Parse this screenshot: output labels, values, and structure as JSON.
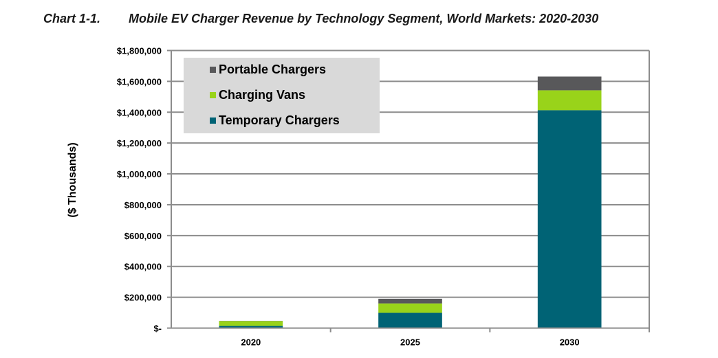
{
  "header": {
    "chart_label": "Chart 1-1.",
    "chart_title": "Mobile EV Charger Revenue by Technology Segment, World Markets: 2020-2030"
  },
  "chart_data": {
    "type": "bar",
    "stacked": true,
    "title": "Mobile EV Charger Revenue by Technology Segment, World Markets: 2020-2030",
    "xlabel": "",
    "ylabel": "($ Thousands)",
    "categories": [
      "2020",
      "2025",
      "2030"
    ],
    "ylim": [
      0,
      1800000
    ],
    "yticks": [
      0,
      200000,
      400000,
      600000,
      800000,
      1000000,
      1200000,
      1400000,
      1600000,
      1800000
    ],
    "ytick_labels": [
      "$-",
      "$200,000",
      "$400,000",
      "$600,000",
      "$800,000",
      "$1,000,000",
      "$1,200,000",
      "$1,400,000",
      "$1,600,000",
      "$1,800,000"
    ],
    "grid": true,
    "legend_position": "top-left",
    "series": [
      {
        "name": "Temporary Chargers",
        "color": "#006375",
        "values": [
          15000,
          100000,
          1413000
        ]
      },
      {
        "name": "Charging Vans",
        "color": "#99d31a",
        "values": [
          31000,
          60000,
          129000
        ]
      },
      {
        "name": "Portable Chargers",
        "color": "#58585a",
        "values": [
          1000,
          30000,
          89000
        ]
      }
    ],
    "legend_order": [
      "Portable Chargers",
      "Charging Vans",
      "Temporary Chargers"
    ]
  }
}
